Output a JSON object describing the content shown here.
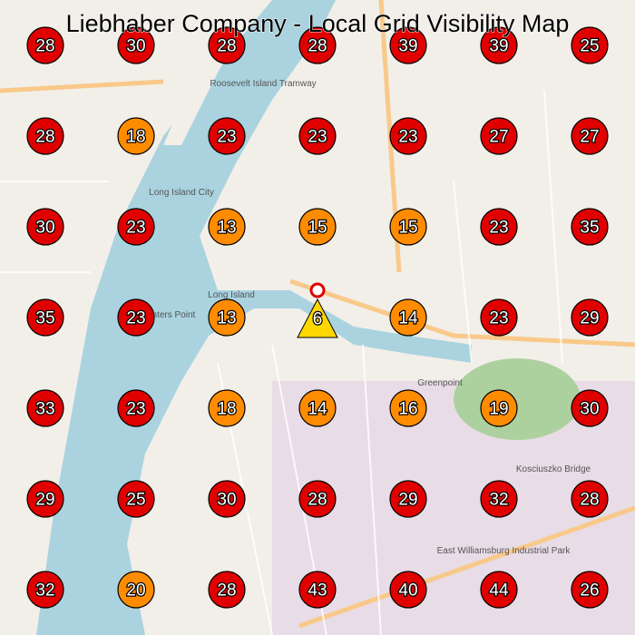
{
  "title": "Liebhaber Company - Local Grid Visibility Map",
  "grid": {
    "rows": [
      [
        28,
        30,
        28,
        28,
        39,
        39,
        25
      ],
      [
        28,
        18,
        23,
        23,
        23,
        27,
        27
      ],
      [
        30,
        23,
        13,
        15,
        15,
        23,
        35
      ],
      [
        35,
        23,
        13,
        null,
        14,
        23,
        29
      ],
      [
        33,
        23,
        18,
        14,
        16,
        19,
        30
      ],
      [
        29,
        25,
        30,
        28,
        29,
        32,
        28
      ],
      [
        32,
        20,
        28,
        43,
        40,
        44,
        26
      ]
    ],
    "colors": [
      [
        "#e00000",
        "#e00000",
        "#e00000",
        "#e00000",
        "#e00000",
        "#e00000",
        "#e00000"
      ],
      [
        "#e00000",
        "#ff8c00",
        "#e00000",
        "#e00000",
        "#e00000",
        "#e00000",
        "#e00000"
      ],
      [
        "#e00000",
        "#e00000",
        "#ff8c00",
        "#ff8c00",
        "#ff8c00",
        "#e00000",
        "#e00000"
      ],
      [
        "#e00000",
        "#e00000",
        "#ff8c00",
        null,
        "#ff8c00",
        "#e00000",
        "#e00000"
      ],
      [
        "#e00000",
        "#e00000",
        "#ff8c00",
        "#ff8c00",
        "#ff8c00",
        "#ff8c00",
        "#e00000"
      ],
      [
        "#e00000",
        "#e00000",
        "#e00000",
        "#e00000",
        "#e00000",
        "#e00000",
        "#e00000"
      ],
      [
        "#e00000",
        "#ff8c00",
        "#e00000",
        "#e00000",
        "#e00000",
        "#e00000",
        "#e00000"
      ]
    ]
  },
  "site": {
    "value": 6,
    "color": "#ffd700"
  },
  "map_labels": [
    "Long Island City",
    "Hunters Point",
    "Greenpoint",
    "Kosciuszko Bridge",
    "East Williamsburg Industrial Park",
    "Roosevelt Island Tramway",
    "Long Island"
  ]
}
